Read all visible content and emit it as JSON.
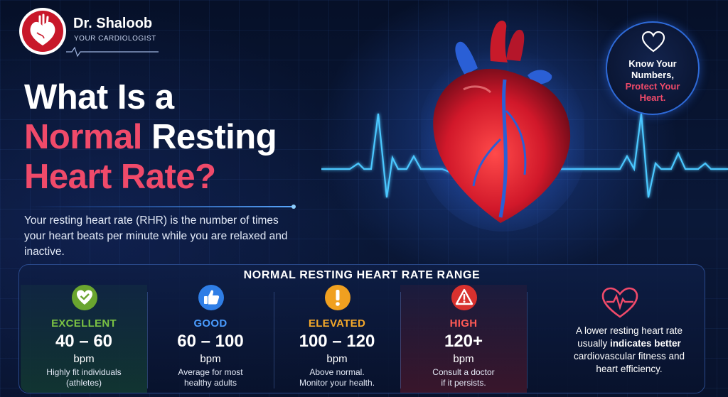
{
  "brand": {
    "name": "Dr. Shaloob",
    "tagline": "YOUR CARDIOLOGIST"
  },
  "title": {
    "line1": "What Is a",
    "line2_accent": "Normal",
    "line2_rest": " Resting",
    "line3_accent": "Heart Rate?"
  },
  "intro": "Your resting heart rate (RHR) is the number of times your heart beats per minute while you are relaxed and inactive.",
  "badge": {
    "line1": "Know Your",
    "line2": "Numbers,",
    "line3": "Protect Your",
    "line4": "Heart.",
    "icon": "heart-outline-icon"
  },
  "range_panel": {
    "title": "NORMAL RESTING HEART RATE RANGE",
    "categories": [
      {
        "label": "EXCELLENT",
        "range": "40 – 60",
        "unit": "bpm",
        "desc1": "Highly fit individuals",
        "desc2": "(athletes)",
        "icon": "heart-check-icon",
        "color": "#7ac143"
      },
      {
        "label": "GOOD",
        "range": "60 – 100",
        "unit": "bpm",
        "desc1": "Average for most",
        "desc2": "healthy adults",
        "icon": "thumbs-up-icon",
        "color": "#3f8ef0"
      },
      {
        "label": "ELEVATED",
        "range": "100 – 120",
        "unit": "bpm",
        "desc1": "Above normal.",
        "desc2": "Monitor your health.",
        "icon": "exclamation-icon",
        "color": "#f4a82a"
      },
      {
        "label": "HIGH",
        "range": "120+",
        "unit": "bpm",
        "desc1": "Consult a doctor",
        "desc2": "if it persists.",
        "icon": "warning-triangle-icon",
        "color": "#e8413e"
      }
    ],
    "note": {
      "pre": "A lower resting heart rate usually ",
      "bold1": "indicates better",
      "mid": " cardiovascular fitness and heart efficiency.",
      "icon": "heart-pulse-icon"
    }
  },
  "colors": {
    "accent_pink": "#f04a6a",
    "background": "#0a1838",
    "glow_blue": "#2e6ad8"
  }
}
